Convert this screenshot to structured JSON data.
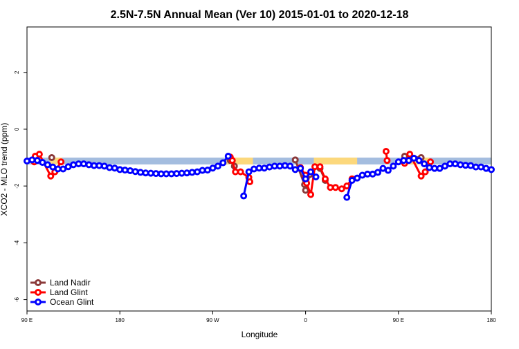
{
  "chart_data": {
    "type": "line",
    "title": "2.5N-7.5N Annual Mean (Ver 10)   2015-01-01 to 2020-12-18",
    "x_label": "Longitude",
    "y_label": "XCO2 - MLO trend (ppm)",
    "xlim": [
      90,
      540
    ],
    "ylim": [
      -6.4,
      3.6
    ],
    "xticks": [
      {
        "value": 90,
        "label": "90 E"
      },
      180,
      {
        "value": 270,
        "label": "90 W"
      },
      {
        "value": 360,
        "label": "0"
      },
      {
        "value": 450,
        "label": "90 E"
      },
      {
        "value": 540,
        "label": "180"
      }
    ],
    "yticks": [
      2,
      0,
      -2,
      -4,
      -6
    ],
    "legend": "bottom-left",
    "surface_band": {
      "ylim": [
        -1.24,
        -1.0
      ],
      "ocean_color": "#a4bddf",
      "land_color": "#fcd87c",
      "land": [
        [
          112,
          124
        ],
        [
          282,
          309
        ],
        [
          368,
          410
        ],
        [
          458,
          480
        ]
      ]
    },
    "series": [
      {
        "name": "Land Nadir",
        "color": "#8b3a3a",
        "x": [
          114,
          200,
          287,
          291,
          330,
          350,
          359,
          360,
          364,
          368,
          374,
          379,
          420,
          456,
          472
        ],
        "values": [
          -1.0,
          null,
          -1.1,
          -1.3,
          null,
          -1.08,
          -1.95,
          -2.15,
          -1.6,
          null,
          -1.38,
          -1.8,
          null,
          -0.95,
          -1.0
        ]
      },
      {
        "name": "Land Glint",
        "color": "#ff0000",
        "x": [
          97,
          98,
          102,
          113,
          117,
          123,
          200,
          287,
          289,
          292,
          297,
          305,
          306,
          330,
          355,
          360,
          361,
          365,
          369,
          374,
          379,
          384,
          389,
          395,
          400,
          405,
          420,
          438,
          439,
          445,
          456,
          461,
          472,
          476,
          481
        ],
        "values": [
          -1.15,
          -0.95,
          -0.88,
          -1.65,
          -1.5,
          -1.15,
          null,
          -0.98,
          -1.1,
          -1.5,
          -1.5,
          -1.7,
          -1.85,
          null,
          -1.35,
          -1.62,
          -1.9,
          -2.3,
          -1.32,
          -1.32,
          -1.75,
          -2.05,
          -2.05,
          -2.1,
          -2.0,
          -1.75,
          null,
          -0.78,
          -1.1,
          null,
          -1.2,
          -0.88,
          -1.65,
          -1.5,
          -1.15
        ]
      },
      {
        "name": "Ocean Glint",
        "color": "#0000ff",
        "x": [
          90,
          95,
          100,
          105,
          110,
          115,
          120,
          125,
          130,
          135,
          140,
          145,
          150,
          155,
          160,
          165,
          170,
          175,
          180,
          185,
          190,
          195,
          200,
          205,
          210,
          215,
          220,
          225,
          230,
          235,
          240,
          245,
          250,
          255,
          260,
          265,
          270,
          275,
          280,
          285,
          290,
          295,
          300,
          305,
          310,
          315,
          320,
          325,
          330,
          335,
          340,
          345,
          350,
          355,
          360,
          365,
          370,
          375,
          380,
          385,
          390,
          395,
          400,
          405,
          410,
          415,
          420,
          425,
          430,
          435,
          440,
          445,
          450,
          455,
          460,
          465,
          470,
          475,
          480,
          485,
          490,
          495,
          500,
          505,
          510,
          515,
          520,
          525,
          530,
          535,
          540
        ],
        "values": [
          -1.12,
          -1.08,
          -1.1,
          -1.17,
          -1.25,
          -1.33,
          -1.4,
          -1.4,
          -1.32,
          -1.25,
          -1.22,
          -1.22,
          -1.25,
          -1.28,
          -1.28,
          -1.3,
          -1.35,
          -1.37,
          -1.42,
          -1.44,
          -1.46,
          -1.49,
          -1.52,
          -1.54,
          -1.55,
          -1.56,
          -1.57,
          -1.57,
          -1.57,
          -1.56,
          -1.55,
          -1.54,
          -1.52,
          -1.5,
          -1.45,
          -1.44,
          -1.37,
          -1.3,
          -1.18,
          -0.95,
          null,
          null,
          -2.35,
          -1.5,
          -1.4,
          -1.37,
          -1.37,
          -1.33,
          -1.3,
          -1.3,
          -1.28,
          -1.3,
          -1.42,
          -1.38,
          -1.75,
          -1.5,
          -1.68,
          null,
          null,
          null,
          null,
          null,
          -2.4,
          -1.8,
          -1.72,
          -1.62,
          -1.58,
          -1.58,
          -1.52,
          -1.38,
          -1.45,
          -1.3,
          -1.15,
          -1.1,
          -1.1,
          -1.02,
          -1.1,
          -1.22,
          -1.35,
          -1.38,
          -1.38,
          -1.3,
          -1.22,
          -1.22,
          -1.25,
          -1.27,
          -1.28,
          -1.33,
          -1.33,
          -1.38,
          -1.42
        ]
      }
    ]
  }
}
